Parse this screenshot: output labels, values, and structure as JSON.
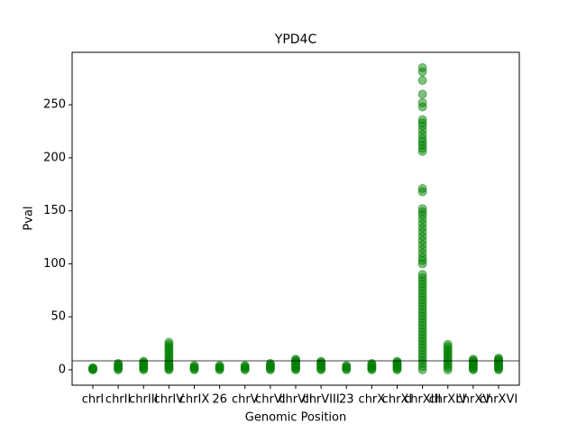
{
  "chart_data": {
    "type": "strip",
    "title": "YPD4C",
    "x_label": "Genomic Position",
    "y_label": "Pval",
    "categories": [
      "chrI",
      "chrII",
      "chrIII",
      "chrIV",
      "chrIX",
      "26",
      "chrV",
      "chrVI",
      "chrVII",
      "chrVIII",
      "23",
      "chrX",
      "chrXI",
      "chrXIII",
      "chrXIV",
      "chrXV",
      "chrXVI"
    ],
    "values": [
      [
        0,
        0.5,
        1,
        1.5,
        2
      ],
      [
        0,
        1,
        2,
        3,
        4,
        5,
        6
      ],
      [
        0,
        1,
        2,
        3,
        4,
        5,
        6,
        7,
        8
      ],
      [
        0,
        1,
        2,
        3,
        4,
        5,
        6,
        8,
        10,
        12,
        14,
        16,
        18,
        20,
        22,
        24,
        26
      ],
      [
        0,
        1,
        2,
        3,
        4
      ],
      [
        0,
        1,
        2,
        3,
        4
      ],
      [
        0,
        1,
        2,
        3,
        4
      ],
      [
        0,
        1,
        2,
        3,
        4,
        5,
        6
      ],
      [
        0,
        1,
        2,
        3,
        4,
        5,
        6,
        7,
        8,
        9,
        10
      ],
      [
        0,
        1,
        2,
        3,
        4,
        5,
        6,
        7,
        8
      ],
      [
        0,
        1,
        2,
        3,
        4
      ],
      [
        0,
        1,
        2,
        3,
        4,
        5,
        6
      ],
      [
        0,
        1,
        2,
        3,
        4,
        5,
        6,
        7,
        8
      ],
      [
        0,
        3,
        6,
        9,
        12,
        15,
        18,
        21,
        24,
        27,
        30,
        33,
        36,
        39,
        42,
        45,
        48,
        51,
        54,
        57,
        60,
        63,
        66,
        69,
        72,
        75,
        78,
        81,
        84,
        87,
        90,
        100,
        103,
        106,
        110,
        114,
        118,
        122,
        126,
        130,
        134,
        138,
        142,
        146,
        149,
        152,
        168,
        171,
        206,
        209,
        212,
        215,
        218,
        222,
        226,
        230,
        233,
        236,
        248,
        252,
        260,
        273,
        281,
        285
      ],
      [
        0,
        2,
        4,
        6,
        8,
        10,
        12,
        14,
        16,
        18,
        20,
        22,
        24
      ],
      [
        0,
        1,
        2,
        3,
        4,
        5,
        6,
        7,
        8,
        9,
        10
      ],
      [
        0,
        1,
        2,
        3,
        4,
        5,
        6,
        7,
        8,
        9,
        10,
        11
      ]
    ],
    "color": "#008000",
    "threshold": 8.5,
    "ylim": [
      -14.5,
      299.5
    ],
    "yticks": [
      0,
      50,
      100,
      150,
      200,
      250
    ]
  }
}
